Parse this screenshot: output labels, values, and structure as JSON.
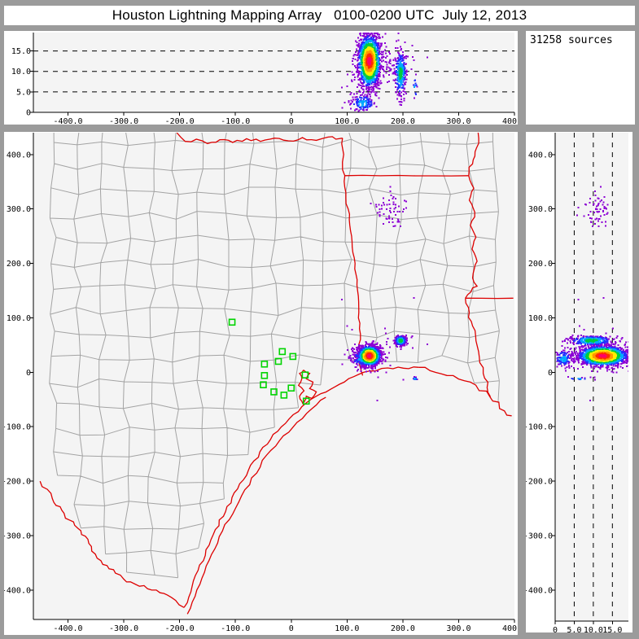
{
  "title": "Houston Lightning Mapping Array   0100-0200 UTC  July 12, 2013",
  "sources_label": "31258 sources",
  "colors": {
    "frame": "#9b9b9b",
    "panel_bg": "#ffffff",
    "plot_bg": "#f4f4f4",
    "axis": "#000000",
    "gridline": "#000000",
    "county_line": "#a3a3a3",
    "state_border": "#dd0000",
    "sensor": "#00d400",
    "tick_text": "#000000"
  },
  "density_palette": [
    "#8c00d4",
    "#2430ff",
    "#00a8ff",
    "#00cc3c",
    "#ffee00",
    "#ff9900",
    "#ff2a00",
    "#ff0066"
  ],
  "chart_data": {
    "type": "scatter",
    "description": "Lightning source density, three linked projections (plan view, E-W vs altitude, altitude vs N-S), distances in km from network center",
    "panels": [
      {
        "id": "ew_altitude",
        "position": "top",
        "x_field": "east_km",
        "y_field": "alt_km",
        "x_axis": {
          "range": [
            -462,
            400
          ],
          "ticks": [
            -400,
            -300,
            -200,
            -100,
            0,
            100,
            200,
            300,
            400
          ],
          "tick_labels": [
            "-400.0",
            "-300.0",
            "-200.0",
            "-100.0",
            "0",
            "100.0",
            "200.0",
            "300.0",
            "400.0"
          ]
        },
        "y_axis": {
          "range": [
            0,
            19.5
          ],
          "ticks": [
            0,
            5,
            10,
            15
          ],
          "tick_labels": [
            "0",
            "5.0",
            "10.0",
            "15.0"
          ],
          "gridlines": [
            5,
            10,
            15
          ],
          "gridline_style": "dashed"
        }
      },
      {
        "id": "plan_view",
        "position": "map",
        "x_field": "east_km",
        "y_field": "north_km",
        "x_axis": {
          "range": [
            -462,
            400
          ],
          "ticks": [
            -400,
            -300,
            -200,
            -100,
            0,
            100,
            200,
            300,
            400
          ],
          "tick_labels": [
            "-400.0",
            "-300.0",
            "-200.0",
            "-100.0",
            "0",
            "100.0",
            "200.0",
            "300.0",
            "400.0"
          ]
        },
        "y_axis": {
          "range": [
            -454,
            440
          ],
          "ticks": [
            400,
            300,
            200,
            100,
            0,
            -100,
            -200,
            -300,
            -400
          ],
          "tick_labels": [
            "400.0",
            "300.0",
            "200.0",
            "100.0",
            "0",
            "-100.0",
            "-200.0",
            "-300.0",
            "-400.0"
          ]
        }
      },
      {
        "id": "ns_altitude",
        "position": "right",
        "x_field": "alt_km",
        "y_field": "north_km",
        "x_axis": {
          "range": [
            0,
            19.2
          ],
          "ticks": [
            0,
            5,
            10,
            15
          ],
          "tick_labels": [
            "0",
            "5.0",
            "10.0",
            "15.0"
          ],
          "gridlines": [
            5,
            10,
            15
          ],
          "gridline_style": "dashed"
        },
        "y_axis": {
          "range": [
            -457,
            440
          ],
          "ticks": [
            400,
            300,
            200,
            100,
            0,
            -100,
            -200,
            -300,
            -400
          ],
          "tick_labels": [
            "400.0",
            "300.0",
            "200.0",
            "100.0",
            "0",
            "-100.0",
            "-200.0",
            "-300.0",
            "-400.0"
          ]
        }
      }
    ],
    "clusters": [
      {
        "name": "main-storm",
        "east_km": 140,
        "north_km": 30,
        "alt_km": 12.5,
        "sigma_east": 10,
        "sigma_north": 9,
        "sigma_alt": 3.2,
        "points": 1600,
        "intensity": 8
      },
      {
        "name": "main-storm-low-tail",
        "east_km": 128,
        "north_km": 25,
        "alt_km": 2.2,
        "sigma_east": 11,
        "sigma_north": 8,
        "sigma_alt": 1.1,
        "points": 130,
        "intensity": 3
      },
      {
        "name": "secondary-storm",
        "east_km": 196,
        "north_km": 58,
        "alt_km": 9.5,
        "sigma_east": 5,
        "sigma_north": 4.5,
        "sigma_alt": 2.8,
        "points": 300,
        "intensity": 4
      },
      {
        "name": "northern-sparse",
        "east_km": 178,
        "north_km": 295,
        "alt_km": 11,
        "sigma_east": 14,
        "sigma_north": 16,
        "sigma_alt": 1.7,
        "points": 60,
        "intensity": 1
      },
      {
        "name": "coastal-speck",
        "east_km": 222,
        "north_km": -12,
        "alt_km": 6,
        "sigma_east": 2,
        "sigma_north": 1.5,
        "sigma_alt": 1.5,
        "points": 14,
        "intensity": 3
      },
      {
        "name": "scattered-noise",
        "east_km": 170,
        "north_km": 45,
        "alt_km": 12,
        "sigma_east": 45,
        "sigma_north": 35,
        "sigma_alt": 4,
        "points": 30,
        "intensity": 1
      }
    ],
    "sensor_stations_km": [
      [
        -106,
        92
      ],
      [
        -16,
        38
      ],
      [
        -23,
        20
      ],
      [
        -48,
        15
      ],
      [
        3,
        29
      ],
      [
        -48,
        -6
      ],
      [
        -50,
        -23
      ],
      [
        -31,
        -36
      ],
      [
        -13,
        -42
      ],
      [
        0,
        -29
      ],
      [
        25,
        -5
      ],
      [
        27,
        -53
      ]
    ]
  }
}
